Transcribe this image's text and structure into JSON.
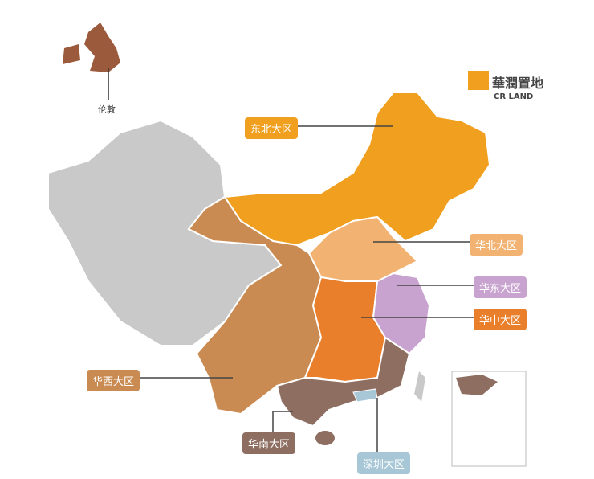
{
  "logo": {
    "cn": "華潤置地",
    "en": "CR LAND"
  },
  "inset_label": "伦敦",
  "regions": [
    {
      "id": "northeast",
      "label": "东北大区",
      "color": "#f0a01e"
    },
    {
      "id": "north",
      "label": "华北大区",
      "color": "#f2b272"
    },
    {
      "id": "east",
      "label": "华东大区",
      "color": "#c9a3cf"
    },
    {
      "id": "central",
      "label": "华中大区",
      "color": "#e97f2a"
    },
    {
      "id": "west",
      "label": "华西大区",
      "color": "#c98b52"
    },
    {
      "id": "south",
      "label": "华南大区",
      "color": "#8f6e62"
    },
    {
      "id": "shenzhen",
      "label": "深圳大区",
      "color": "#a7c7d6"
    }
  ],
  "uncovered_color": "#c9c9c9",
  "london_color": "#9b5a3c"
}
